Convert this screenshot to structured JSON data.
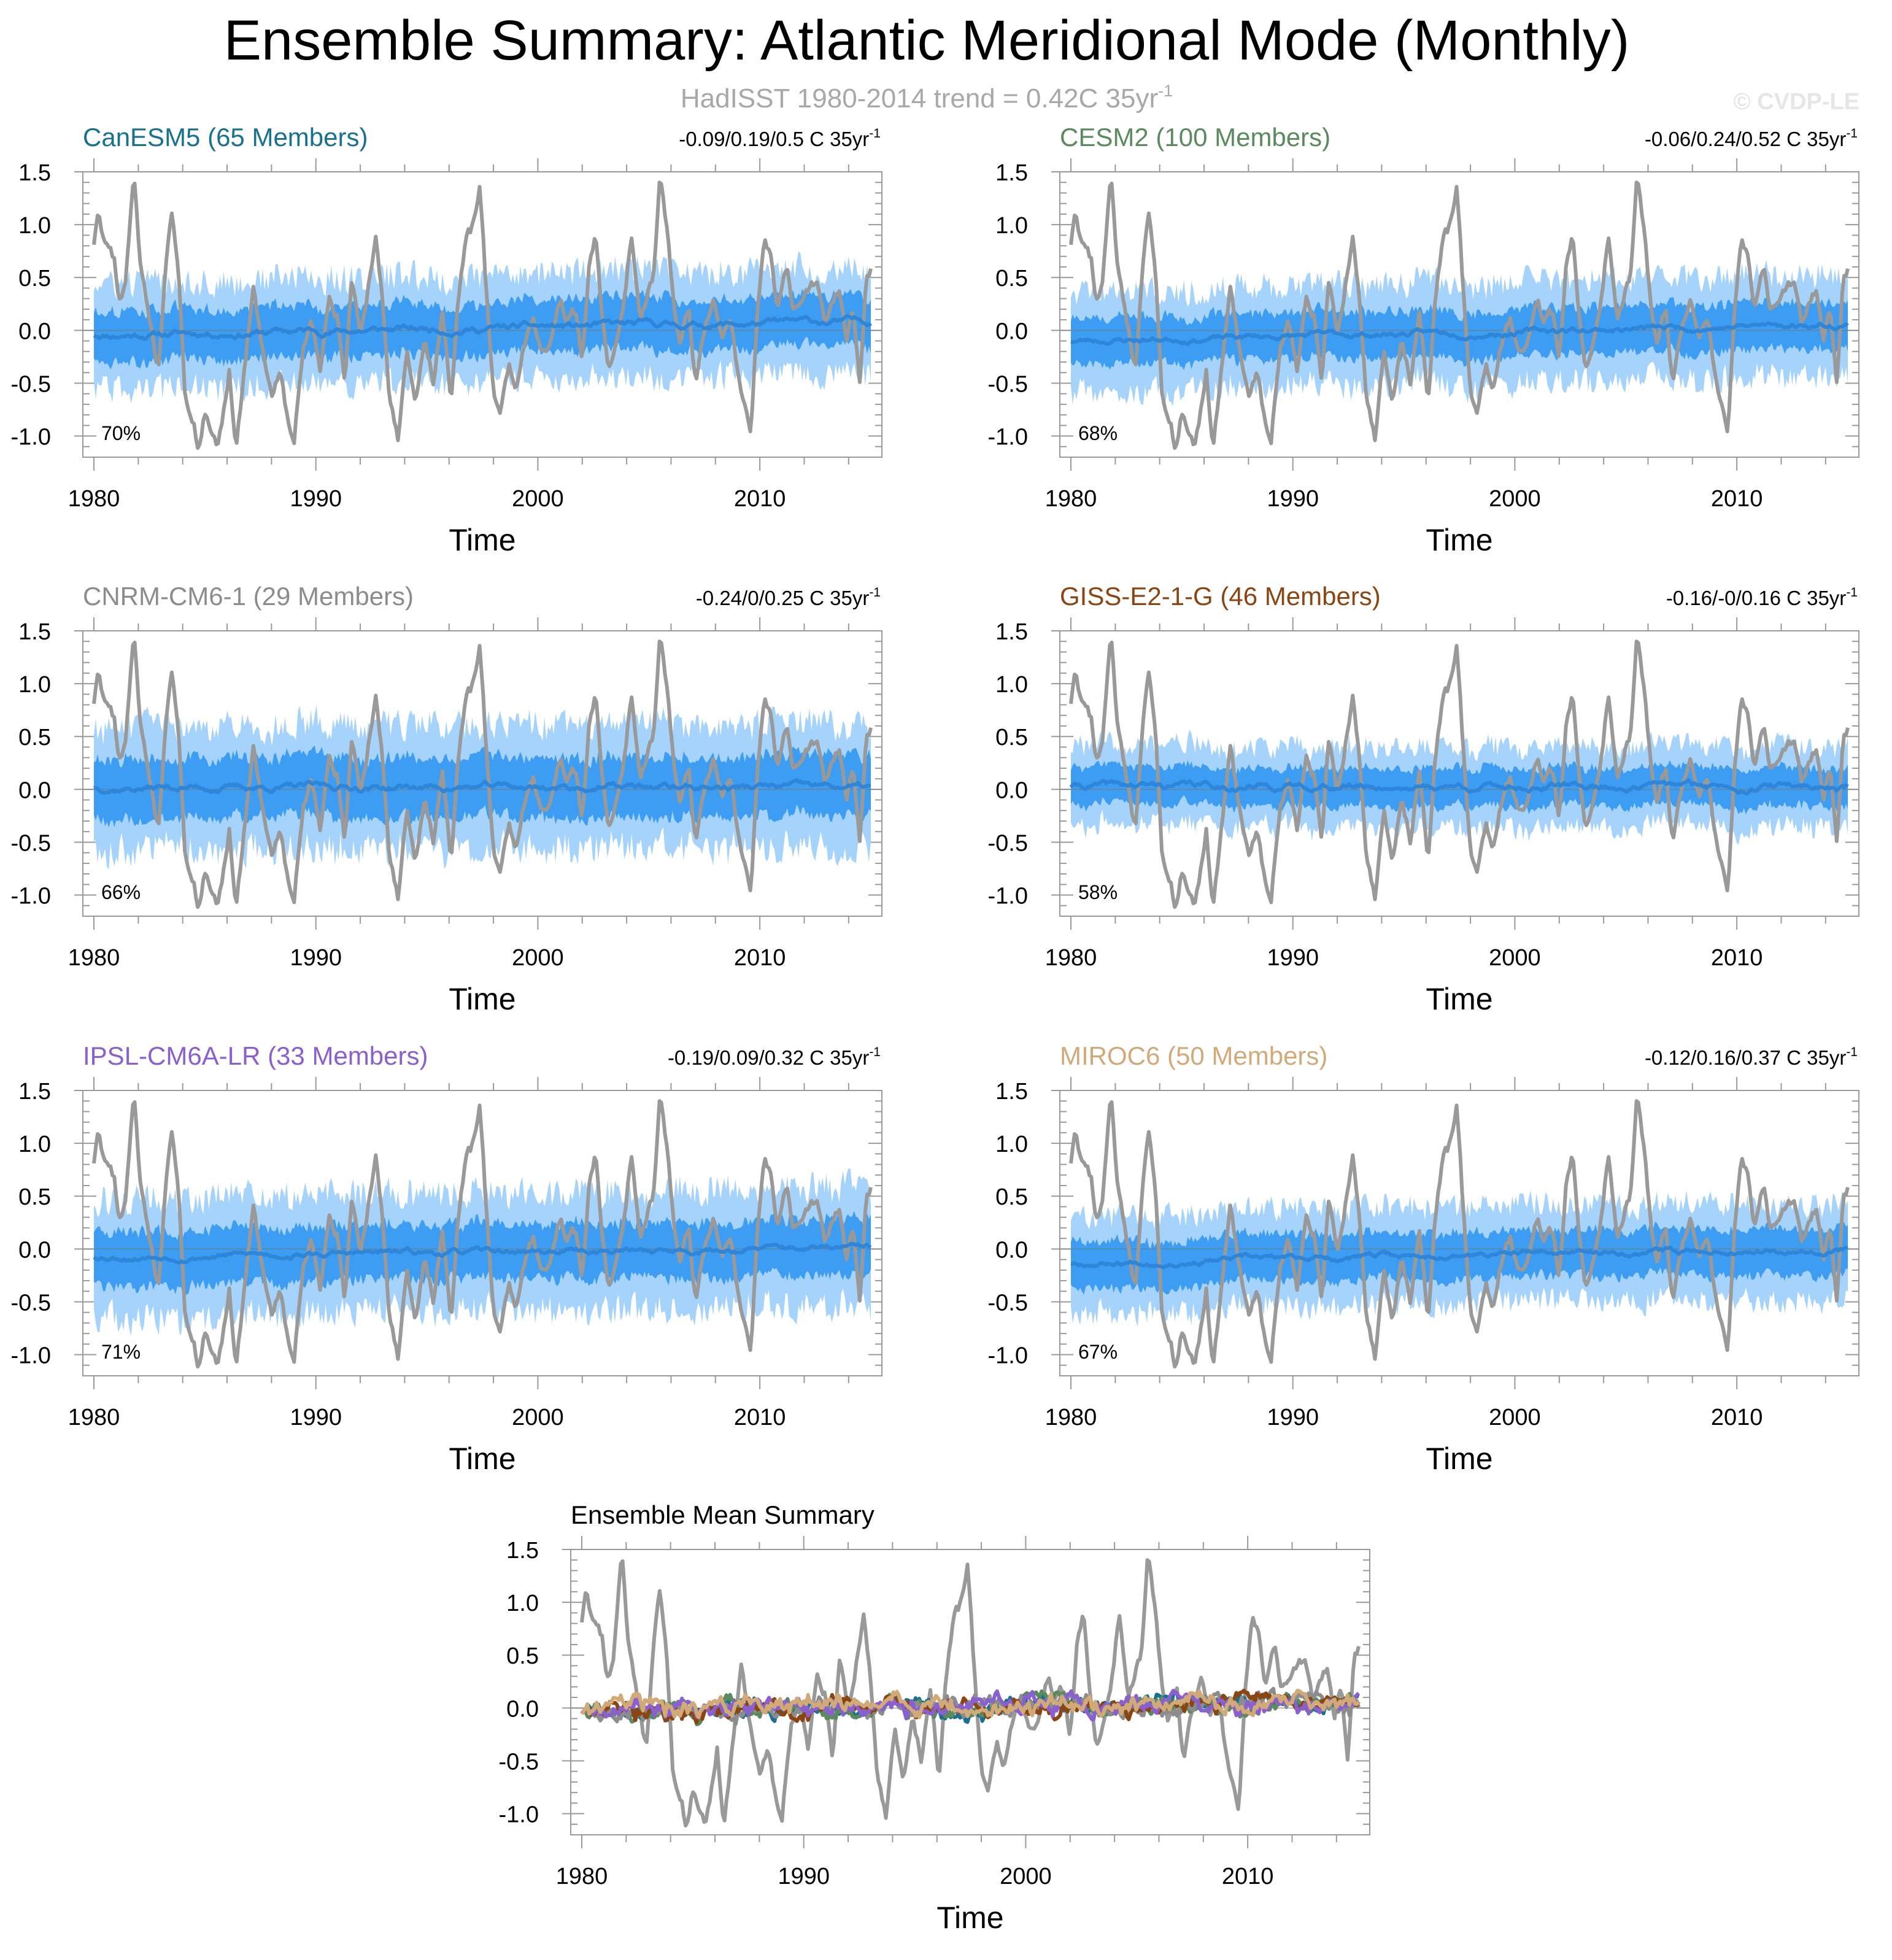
{
  "title": "Ensemble Summary: Atlantic Meridional Mode (Monthly)",
  "subtitle": {
    "text": "HadISST 1980-2014 trend = 0.42C 35yr",
    "sup": "-1"
  },
  "watermark": "© CVDP-LE",
  "colors": {
    "observation": "#999999",
    "band_outer": "#a6d3fb",
    "band_inner": "#3d9df2",
    "ensemble_mean": "#2f86d8",
    "canesm5": "#17718f",
    "cesm2": "#5a8a5e",
    "cnrm": "#8c8c8c",
    "giss": "#8b4513",
    "ipsl": "#8a5fcf",
    "miroc6": "#d2aa7a"
  },
  "chart_data": [
    {
      "type": "area",
      "model": "CanESM5 (65 Members)",
      "model_color": "#17718f",
      "trend": {
        "text": "-0.09/0.19/0.5 C 35yr",
        "sup": "-1"
      },
      "percent": "70%",
      "xlabel": "Time",
      "xlim": [
        1980,
        2015
      ],
      "ylim": [
        -1.2,
        1.5
      ],
      "xticks": [
        "1980",
        "1990",
        "2000",
        "2010"
      ],
      "yticks": [
        "-1.0",
        "-0.5",
        "0.0",
        "0.5",
        "1.0",
        "1.5"
      ],
      "mean_offset": 0.02,
      "mean_trend": 0.12,
      "inner_half": 0.24,
      "outer_half": 0.5,
      "seed": 11
    },
    {
      "type": "area",
      "model": "CESM2 (100 Members)",
      "model_color": "#5a8a5e",
      "trend": {
        "text": "-0.06/0.24/0.52 C 35yr",
        "sup": "-1"
      },
      "percent": "68%",
      "xlabel": "Time",
      "xlim": [
        1980,
        2015
      ],
      "ylim": [
        -1.2,
        1.5
      ],
      "xticks": [
        "1980",
        "1990",
        "2000",
        "2010"
      ],
      "yticks": [
        "-1.0",
        "-0.5",
        "0.0",
        "0.5",
        "1.0",
        "1.5"
      ],
      "mean_offset": -0.02,
      "mean_trend": 0.16,
      "inner_half": 0.22,
      "outer_half": 0.48,
      "seed": 23
    },
    {
      "type": "area",
      "model": "CNRM-CM6-1 (29 Members)",
      "model_color": "#8c8c8c",
      "trend": {
        "text": "-0.24/0/0.25 C 35yr",
        "sup": "-1"
      },
      "percent": "66%",
      "xlabel": "Time",
      "xlim": [
        1980,
        2015
      ],
      "ylim": [
        -1.2,
        1.5
      ],
      "xticks": [
        "1980",
        "1990",
        "2000",
        "2010"
      ],
      "yticks": [
        "-1.0",
        "-0.5",
        "0.0",
        "0.5",
        "1.0",
        "1.5"
      ],
      "mean_offset": 0.02,
      "mean_trend": 0.0,
      "inner_half": 0.28,
      "outer_half": 0.58,
      "seed": 37
    },
    {
      "type": "area",
      "model": "GISS-E2-1-G (46 Members)",
      "model_color": "#8b4513",
      "trend": {
        "text": "-0.16/-0/0.16 C 35yr",
        "sup": "-1"
      },
      "percent": "58%",
      "xlabel": "Time",
      "xlim": [
        1980,
        2015
      ],
      "ylim": [
        -1.2,
        1.5
      ],
      "xticks": [
        "1980",
        "1990",
        "2000",
        "2010"
      ],
      "yticks": [
        "-1.0",
        "-0.5",
        "0.0",
        "0.5",
        "1.0",
        "1.5"
      ],
      "mean_offset": 0.03,
      "mean_trend": 0.0,
      "inner_half": 0.18,
      "outer_half": 0.38,
      "seed": 41
    },
    {
      "type": "area",
      "model": "IPSL-CM6A-LR (33 Members)",
      "model_color": "#8a5fcf",
      "trend": {
        "text": "-0.19/0.09/0.32 C 35yr",
        "sup": "-1"
      },
      "percent": "71%",
      "xlabel": "Time",
      "xlim": [
        1980,
        2015
      ],
      "ylim": [
        -1.2,
        1.5
      ],
      "xticks": [
        "1980",
        "1990",
        "2000",
        "2010"
      ],
      "yticks": [
        "-1.0",
        "-0.5",
        "0.0",
        "0.5",
        "1.0",
        "1.5"
      ],
      "mean_offset": -0.03,
      "mean_trend": 0.08,
      "inner_half": 0.26,
      "outer_half": 0.56,
      "seed": 53
    },
    {
      "type": "area",
      "model": "MIROC6 (50 Members)",
      "model_color": "#d2aa7a",
      "trend": {
        "text": "-0.12/0.16/0.37 C 35yr",
        "sup": "-1"
      },
      "percent": "67%",
      "xlabel": "Time",
      "xlim": [
        1980,
        2015
      ],
      "ylim": [
        -1.2,
        1.5
      ],
      "xticks": [
        "1980",
        "1990",
        "2000",
        "2010"
      ],
      "yticks": [
        "-1.0",
        "-0.5",
        "0.0",
        "0.5",
        "1.0",
        "1.5"
      ],
      "mean_offset": -0.06,
      "mean_trend": 0.14,
      "inner_half": 0.22,
      "outer_half": 0.46,
      "seed": 67
    },
    {
      "type": "line",
      "model": "Ensemble Mean Summary",
      "xlabel": "Time",
      "xlim": [
        1980,
        2015
      ],
      "ylim": [
        -1.2,
        1.5
      ],
      "xticks": [
        "1980",
        "1990",
        "2000",
        "2010"
      ],
      "yticks": [
        "-1.0",
        "-0.5",
        "0.0",
        "0.5",
        "1.0",
        "1.5"
      ],
      "series": [
        {
          "model": "CanESM5",
          "color": "#17718f",
          "seed": 111
        },
        {
          "model": "CESM2",
          "color": "#5a8a5e",
          "seed": 122
        },
        {
          "model": "CNRM-CM6-1",
          "color": "#8c8c8c",
          "seed": 133
        },
        {
          "model": "GISS-E2-1-G",
          "color": "#8b4513",
          "seed": 144
        },
        {
          "model": "IPSL-CM6A-LR",
          "color": "#8a5fcf",
          "seed": 155
        },
        {
          "model": "MIROC6",
          "color": "#d2aa7a",
          "seed": 166
        }
      ]
    }
  ],
  "observation_anchors": [
    [
      1980.0,
      0.8
    ],
    [
      1980.2,
      1.1
    ],
    [
      1980.5,
      0.8
    ],
    [
      1980.9,
      0.7
    ],
    [
      1981.1,
      0.3
    ],
    [
      1981.4,
      0.4
    ],
    [
      1981.8,
      1.45
    ],
    [
      1982.1,
      0.6
    ],
    [
      1982.5,
      0.1
    ],
    [
      1982.9,
      -0.4
    ],
    [
      1983.2,
      0.5
    ],
    [
      1983.5,
      1.1
    ],
    [
      1983.8,
      0.6
    ],
    [
      1984.1,
      -0.6
    ],
    [
      1984.5,
      -0.9
    ],
    [
      1984.7,
      -1.15
    ],
    [
      1985.0,
      -0.8
    ],
    [
      1985.3,
      -1.0
    ],
    [
      1985.6,
      -1.1
    ],
    [
      1985.9,
      -0.7
    ],
    [
      1986.1,
      -0.4
    ],
    [
      1986.4,
      -1.15
    ],
    [
      1986.8,
      -0.3
    ],
    [
      1987.2,
      0.4
    ],
    [
      1987.6,
      -0.2
    ],
    [
      1988.0,
      -0.6
    ],
    [
      1988.4,
      -0.4
    ],
    [
      1988.7,
      -0.8
    ],
    [
      1989.0,
      -1.1
    ],
    [
      1989.4,
      -0.2
    ],
    [
      1989.8,
      0.1
    ],
    [
      1990.2,
      -0.4
    ],
    [
      1990.6,
      0.3
    ],
    [
      1991.0,
      0.1
    ],
    [
      1991.3,
      -0.5
    ],
    [
      1991.6,
      0.5
    ],
    [
      1992.0,
      0.0
    ],
    [
      1992.3,
      0.3
    ],
    [
      1992.7,
      0.9
    ],
    [
      1993.0,
      0.3
    ],
    [
      1993.3,
      -0.6
    ],
    [
      1993.7,
      -1.05
    ],
    [
      1994.1,
      -0.2
    ],
    [
      1994.5,
      -0.7
    ],
    [
      1994.9,
      -0.1
    ],
    [
      1995.3,
      -0.5
    ],
    [
      1995.7,
      0.2
    ],
    [
      1996.1,
      -0.7
    ],
    [
      1996.4,
      0.3
    ],
    [
      1996.8,
      0.9
    ],
    [
      1997.1,
      1.0
    ],
    [
      1997.4,
      1.35
    ],
    [
      1997.7,
      0.3
    ],
    [
      1998.0,
      -0.6
    ],
    [
      1998.3,
      -0.8
    ],
    [
      1998.7,
      -0.3
    ],
    [
      1999.0,
      -0.6
    ],
    [
      1999.4,
      -0.1
    ],
    [
      1999.8,
      0.1
    ],
    [
      2000.2,
      -0.2
    ],
    [
      2000.6,
      -0.1
    ],
    [
      2001.0,
      0.3
    ],
    [
      2001.3,
      0.1
    ],
    [
      2001.7,
      0.2
    ],
    [
      2002.0,
      -0.3
    ],
    [
      2002.3,
      0.6
    ],
    [
      2002.6,
      0.9
    ],
    [
      2002.9,
      0.1
    ],
    [
      2003.2,
      -0.4
    ],
    [
      2003.5,
      -0.1
    ],
    [
      2003.9,
      0.3
    ],
    [
      2004.2,
      0.9
    ],
    [
      2004.6,
      0.1
    ],
    [
      2004.9,
      0.3
    ],
    [
      2005.2,
      0.5
    ],
    [
      2005.5,
      1.45
    ],
    [
      2005.8,
      1.0
    ],
    [
      2006.1,
      0.3
    ],
    [
      2006.4,
      -0.1
    ],
    [
      2006.8,
      0.2
    ],
    [
      2007.1,
      -0.5
    ],
    [
      2007.5,
      0.0
    ],
    [
      2007.9,
      0.3
    ],
    [
      2008.3,
      -0.1
    ],
    [
      2008.7,
      0.1
    ],
    [
      2009.0,
      -0.4
    ],
    [
      2009.3,
      -0.7
    ],
    [
      2009.6,
      -0.95
    ],
    [
      2009.9,
      0.2
    ],
    [
      2010.2,
      0.9
    ],
    [
      2010.5,
      0.7
    ],
    [
      2010.8,
      0.2
    ],
    [
      2011.2,
      0.6
    ],
    [
      2011.5,
      0.2
    ],
    [
      2011.9,
      0.3
    ],
    [
      2012.2,
      0.4
    ],
    [
      2012.6,
      0.5
    ],
    [
      2012.9,
      0.1
    ],
    [
      2013.2,
      0.2
    ],
    [
      2013.6,
      0.4
    ],
    [
      2013.9,
      -0.1
    ],
    [
      2014.2,
      0.2
    ],
    [
      2014.5,
      -0.5
    ],
    [
      2014.8,
      0.5
    ],
    [
      2015.0,
      0.55
    ]
  ]
}
